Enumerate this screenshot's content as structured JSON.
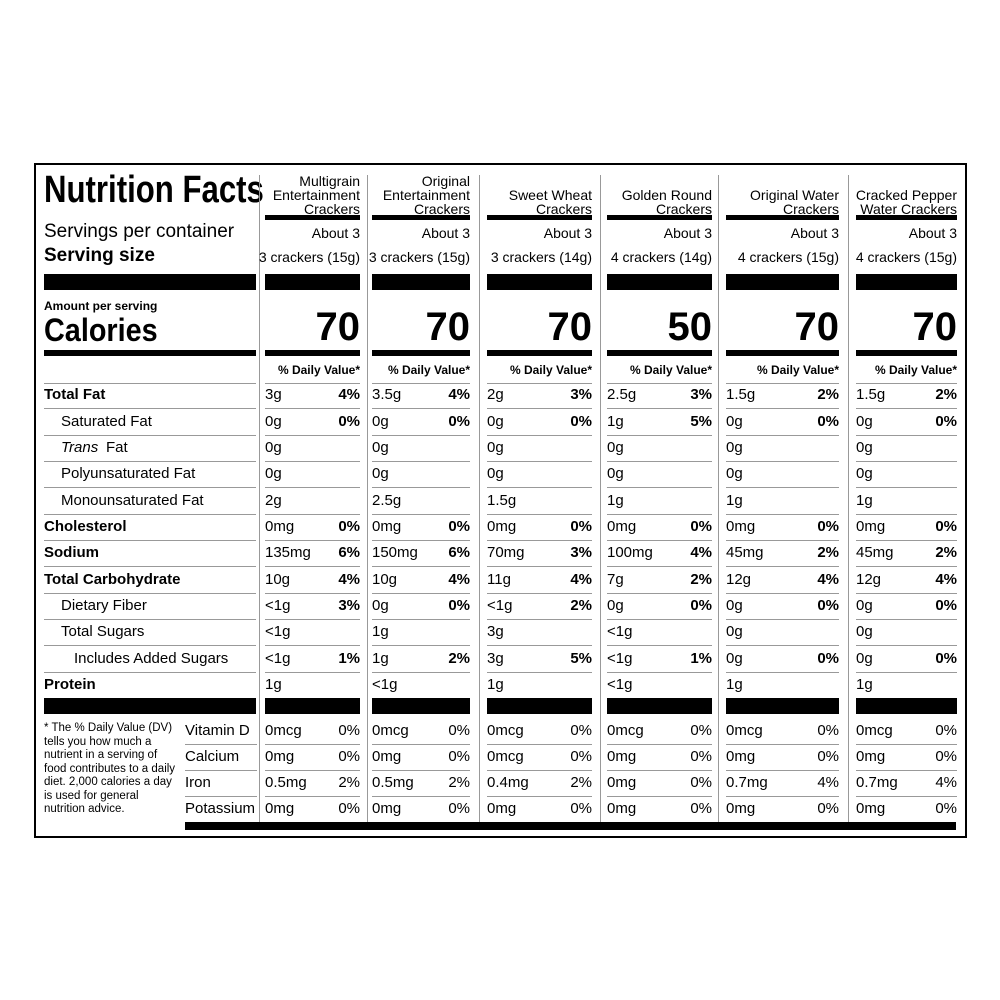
{
  "title": "Nutrition Facts",
  "servings_label": "Servings per container",
  "serving_size_label": "Serving size",
  "amount_label": "Amount per serving",
  "calories_label": "Calories",
  "dv_header": "% Daily Value*",
  "footnote": "* The % Daily Value (DV) tells you how much a nutrient in a serving of food contributes to a daily diet. 2,000 calories a day is used for general nutrition advice.",
  "nutrients": [
    {
      "label": "Total Fat",
      "level": "main"
    },
    {
      "label": "Saturated Fat",
      "level": "sub"
    },
    {
      "label_italic": "Trans",
      "label": "Fat",
      "level": "sub"
    },
    {
      "label": "Polyunsaturated Fat",
      "level": "sub"
    },
    {
      "label": "Monounsaturated Fat",
      "level": "sub"
    },
    {
      "label": "Cholesterol",
      "level": "main"
    },
    {
      "label": "Sodium",
      "level": "main"
    },
    {
      "label": "Total Carbohydrate",
      "level": "main"
    },
    {
      "label": "Dietary Fiber",
      "level": "sub"
    },
    {
      "label": "Total Sugars",
      "level": "sub"
    },
    {
      "label": "Includes Added Sugars",
      "level": "subsub"
    },
    {
      "label": "Protein",
      "level": "main"
    }
  ],
  "vitamins": [
    "Vitamin D",
    "Calcium",
    "Iron",
    "Potassium"
  ],
  "products": [
    {
      "name": "Multigrain Entertainment Crackers",
      "servings": "About 3",
      "serving_size": "3 crackers (15g)",
      "calories": 70,
      "nutrients": [
        [
          "3g",
          "4%"
        ],
        [
          "0g",
          "0%"
        ],
        [
          "0g",
          null
        ],
        [
          "0g",
          null
        ],
        [
          "2g",
          null
        ],
        [
          "0mg",
          "0%"
        ],
        [
          "135mg",
          "6%"
        ],
        [
          "10g",
          "4%"
        ],
        [
          "<1g",
          "3%"
        ],
        [
          "<1g",
          null
        ],
        [
          "<1g",
          "1%"
        ],
        [
          "1g",
          null
        ]
      ],
      "vitamins": [
        [
          "0mcg",
          "0%"
        ],
        [
          "0mg",
          "0%"
        ],
        [
          "0.5mg",
          "2%"
        ],
        [
          "0mg",
          "0%"
        ]
      ]
    },
    {
      "name": "Original Entertainment Crackers",
      "servings": "About 3",
      "serving_size": "3 crackers (15g)",
      "calories": 70,
      "nutrients": [
        [
          "3.5g",
          "4%"
        ],
        [
          "0g",
          "0%"
        ],
        [
          "0g",
          null
        ],
        [
          "0g",
          null
        ],
        [
          "2.5g",
          null
        ],
        [
          "0mg",
          "0%"
        ],
        [
          "150mg",
          "6%"
        ],
        [
          "10g",
          "4%"
        ],
        [
          "0g",
          "0%"
        ],
        [
          "1g",
          null
        ],
        [
          "1g",
          "2%"
        ],
        [
          "<1g",
          null
        ]
      ],
      "vitamins": [
        [
          "0mcg",
          "0%"
        ],
        [
          "0mg",
          "0%"
        ],
        [
          "0.5mg",
          "2%"
        ],
        [
          "0mg",
          "0%"
        ]
      ]
    },
    {
      "name": "Sweet Wheat Crackers",
      "servings": "About 3",
      "serving_size": "3 crackers (14g)",
      "calories": 70,
      "nutrients": [
        [
          "2g",
          "3%"
        ],
        [
          "0g",
          "0%"
        ],
        [
          "0g",
          null
        ],
        [
          "0g",
          null
        ],
        [
          "1.5g",
          null
        ],
        [
          "0mg",
          "0%"
        ],
        [
          "70mg",
          "3%"
        ],
        [
          "11g",
          "4%"
        ],
        [
          "<1g",
          "2%"
        ],
        [
          "3g",
          null
        ],
        [
          "3g",
          "5%"
        ],
        [
          "1g",
          null
        ]
      ],
      "vitamins": [
        [
          "0mcg",
          "0%"
        ],
        [
          "0mcg",
          "0%"
        ],
        [
          "0.4mg",
          "2%"
        ],
        [
          "0mg",
          "0%"
        ]
      ]
    },
    {
      "name": "Golden Round Crackers",
      "servings": "About 3",
      "serving_size": "4 crackers (14g)",
      "calories": 50,
      "nutrients": [
        [
          "2.5g",
          "3%"
        ],
        [
          "1g",
          "5%"
        ],
        [
          "0g",
          null
        ],
        [
          "0g",
          null
        ],
        [
          "1g",
          null
        ],
        [
          "0mg",
          "0%"
        ],
        [
          "100mg",
          "4%"
        ],
        [
          "7g",
          "2%"
        ],
        [
          "0g",
          "0%"
        ],
        [
          "<1g",
          null
        ],
        [
          "<1g",
          "1%"
        ],
        [
          "<1g",
          null
        ]
      ],
      "vitamins": [
        [
          "0mcg",
          "0%"
        ],
        [
          "0mg",
          "0%"
        ],
        [
          "0mg",
          "0%"
        ],
        [
          "0mg",
          "0%"
        ]
      ]
    },
    {
      "name": "Original Water Crackers",
      "servings": "About 3",
      "serving_size": "4 crackers (15g)",
      "calories": 70,
      "nutrients": [
        [
          "1.5g",
          "2%"
        ],
        [
          "0g",
          "0%"
        ],
        [
          "0g",
          null
        ],
        [
          "0g",
          null
        ],
        [
          "1g",
          null
        ],
        [
          "0mg",
          "0%"
        ],
        [
          "45mg",
          "2%"
        ],
        [
          "12g",
          "4%"
        ],
        [
          "0g",
          "0%"
        ],
        [
          "0g",
          null
        ],
        [
          "0g",
          "0%"
        ],
        [
          "1g",
          null
        ]
      ],
      "vitamins": [
        [
          "0mcg",
          "0%"
        ],
        [
          "0mg",
          "0%"
        ],
        [
          "0.7mg",
          "4%"
        ],
        [
          "0mg",
          "0%"
        ]
      ]
    },
    {
      "name": "Cracked Pepper Water Crackers",
      "servings": "About 3",
      "serving_size": "4 crackers (15g)",
      "calories": 70,
      "nutrients": [
        [
          "1.5g",
          "2%"
        ],
        [
          "0g",
          "0%"
        ],
        [
          "0g",
          null
        ],
        [
          "0g",
          null
        ],
        [
          "1g",
          null
        ],
        [
          "0mg",
          "0%"
        ],
        [
          "45mg",
          "2%"
        ],
        [
          "12g",
          "4%"
        ],
        [
          "0g",
          "0%"
        ],
        [
          "0g",
          null
        ],
        [
          "0g",
          "0%"
        ],
        [
          "1g",
          null
        ]
      ],
      "vitamins": [
        [
          "0mcg",
          "0%"
        ],
        [
          "0mg",
          "0%"
        ],
        [
          "0.7mg",
          "4%"
        ],
        [
          "0mg",
          "0%"
        ]
      ]
    }
  ]
}
